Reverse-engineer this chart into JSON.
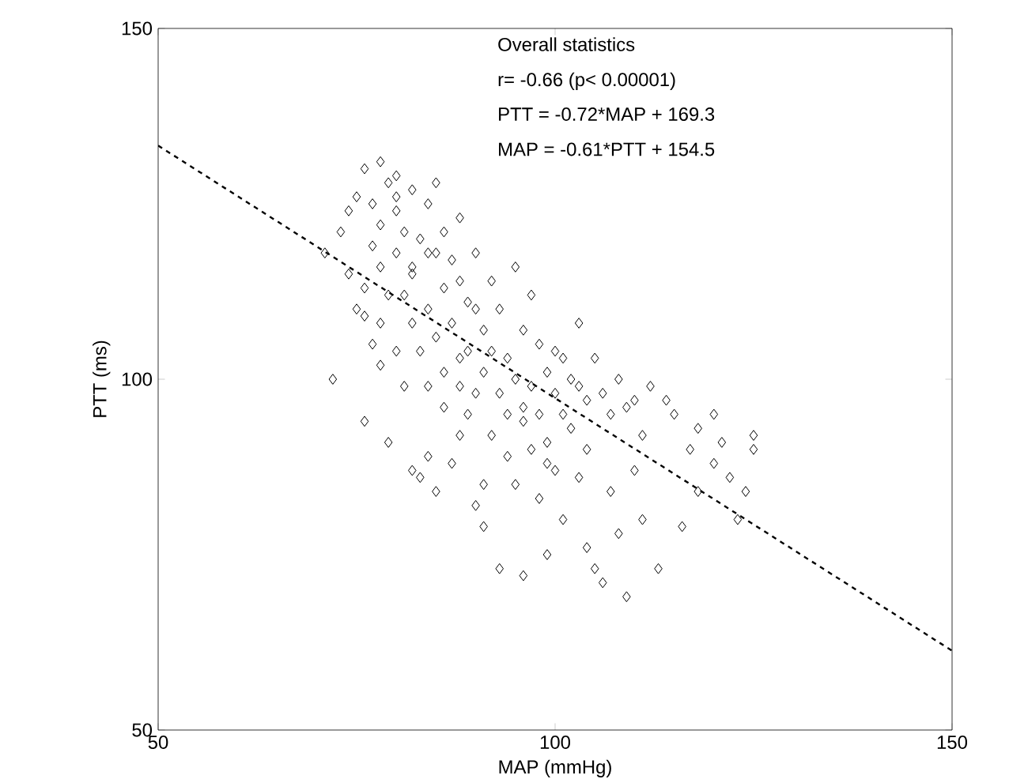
{
  "chart_data": {
    "type": "scatter",
    "xlabel": "MAP (mmHg)",
    "ylabel": "PTT (ms)",
    "xlim": [
      50,
      150
    ],
    "ylim": [
      50,
      150
    ],
    "xticks": [
      50,
      100,
      150
    ],
    "yticks": [
      50,
      100,
      150
    ],
    "grid": false,
    "annotations": [
      "Overall statistics",
      "r= -0.66 (p< 0.00001)",
      "PTT = -0.72*MAP + 169.3",
      "MAP = -0.61*PTT + 154.5"
    ],
    "series": [
      {
        "marker": "diamond",
        "color": "#000000",
        "x": [
          71,
          72,
          73,
          74,
          74,
          75,
          75,
          76,
          76,
          76,
          77,
          77,
          77,
          78,
          78,
          78,
          78,
          79,
          79,
          79,
          80,
          80,
          80,
          80,
          81,
          81,
          81,
          82,
          82,
          82,
          82,
          83,
          83,
          83,
          84,
          84,
          84,
          84,
          85,
          85,
          85,
          86,
          86,
          86,
          86,
          87,
          87,
          87,
          88,
          88,
          88,
          88,
          89,
          89,
          89,
          90,
          90,
          90,
          91,
          91,
          91,
          92,
          92,
          92,
          93,
          93,
          93,
          94,
          94,
          94,
          95,
          95,
          95,
          96,
          96,
          96,
          97,
          97,
          97,
          98,
          98,
          98,
          99,
          99,
          99,
          100,
          100,
          100,
          101,
          101,
          101,
          102,
          102,
          103,
          103,
          103,
          104,
          104,
          104,
          105,
          105,
          106,
          106,
          107,
          107,
          108,
          108,
          109,
          109,
          110,
          110,
          111,
          111,
          112,
          113,
          114,
          115,
          116,
          117,
          118,
          118,
          120,
          120,
          121,
          122,
          123,
          124,
          125,
          125,
          78,
          82,
          90,
          91,
          96,
          99,
          85,
          84,
          76,
          80,
          88
        ],
        "values": [
          118,
          100,
          121,
          115,
          124,
          110,
          126,
          113,
          94,
          130,
          119,
          105,
          125,
          131,
          108,
          116,
          122,
          91,
          128,
          112,
          129,
          104,
          118,
          124,
          99,
          112,
          121,
          127,
          87,
          108,
          116,
          86,
          120,
          104,
          125,
          110,
          99,
          89,
          118,
          106,
          128,
          113,
          96,
          121,
          101,
          88,
          117,
          108,
          114,
          99,
          92,
          123,
          111,
          104,
          95,
          118,
          98,
          110,
          79,
          101,
          107,
          114,
          92,
          104,
          73,
          98,
          110,
          95,
          103,
          89,
          116,
          100,
          85,
          107,
          94,
          72,
          112,
          99,
          90,
          105,
          95,
          83,
          101,
          75,
          91,
          104,
          98,
          87,
          103,
          95,
          80,
          100,
          93,
          99,
          86,
          108,
          97,
          90,
          76,
          103,
          73,
          98,
          71,
          95,
          84,
          100,
          78,
          96,
          69,
          97,
          87,
          92,
          80,
          99,
          73,
          97,
          95,
          79,
          90,
          93,
          84,
          95,
          88,
          91,
          86,
          80,
          84,
          92,
          90,
          102,
          115,
          82,
          85,
          96,
          88,
          84,
          118,
          109,
          126,
          103
        ]
      },
      {
        "type": "line",
        "line_style": "dashed",
        "color": "#000000",
        "x": [
          50,
          150
        ],
        "values": [
          133.3,
          61.3
        ]
      }
    ]
  }
}
